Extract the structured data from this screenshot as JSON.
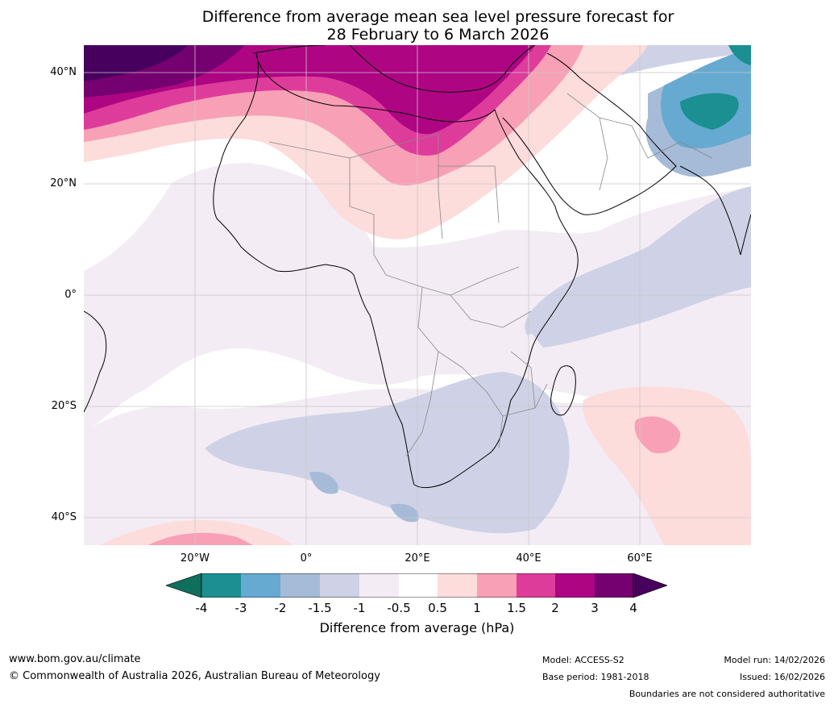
{
  "title": {
    "line1": "Difference from average mean sea level pressure forecast for",
    "line2": "28 February to 6 March 2026"
  },
  "map": {
    "lat_labels": [
      "40°N",
      "20°N",
      "0°",
      "20°S",
      "40°S"
    ],
    "lon_labels": [
      "20°W",
      "0°",
      "20°E",
      "40°E",
      "60°E"
    ],
    "colors": {
      "lt_-4": "#0f6e5e",
      "-4_-3": "#1b8f92",
      "-3_-2": "#66aad1",
      "-2_-1.5": "#a6bbd8",
      "-1.5_-1": "#cfd2e6",
      "-1_-0.5": "#f3ecf4",
      "-0.5_0.5": "#ffffff",
      "0.5_1": "#fddcdc",
      "1_1.5": "#f8a0b6",
      "1.5_2": "#de3c9b",
      "2_3": "#ae0583",
      "3_4": "#75006f",
      "gt_4": "#48005e"
    }
  },
  "colorbar": {
    "ticks": [
      "-4",
      "-3",
      "-2",
      "-1.5",
      "-1",
      "-0.5",
      "0.5",
      "1",
      "1.5",
      "2",
      "3",
      "4"
    ],
    "label": "Difference from average (hPa)"
  },
  "footer": {
    "website": "www.bom.gov.au/climate",
    "copyright": "© Commonwealth of Australia 2026, Australian Bureau of Meteorology",
    "model": "Model: ACCESS-S2",
    "base_period": "Base period: 1981-2018",
    "model_run": "Model run: 14/02/2026",
    "issued": "Issued: 16/02/2026",
    "disclaimer": "Boundaries are not considered authoritative"
  }
}
